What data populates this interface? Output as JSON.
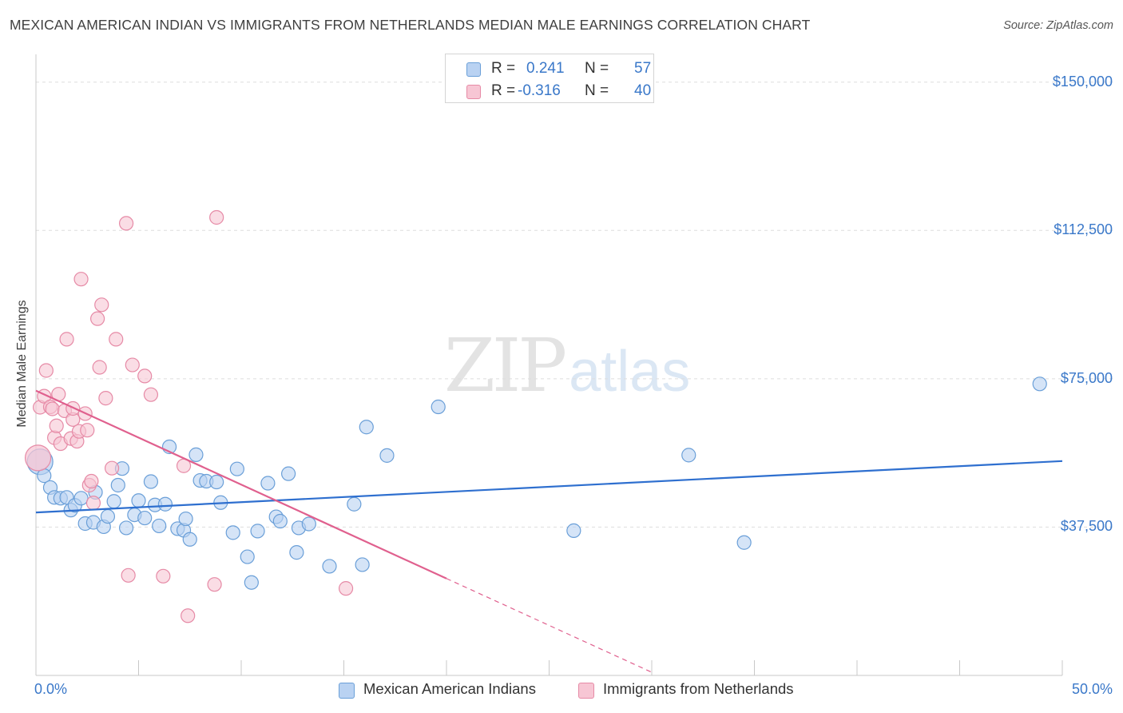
{
  "title": "MEXICAN AMERICAN INDIAN VS IMMIGRANTS FROM NETHERLANDS MEDIAN MALE EARNINGS CORRELATION CHART",
  "source": "Source: ZipAtlas.com",
  "watermark": {
    "zip": "ZIP",
    "atlas": "atlas"
  },
  "stats": [
    {
      "r_label": "R =",
      "r_value": "0.241",
      "n_label": "N =",
      "n_value": "57"
    },
    {
      "r_label": "R =",
      "r_value": "-0.316",
      "n_label": "N =",
      "n_value": "40"
    }
  ],
  "colors": {
    "blue_fill": "#b9d2f2",
    "blue_stroke": "#6a9fd8",
    "blue_line": "#2e6fcf",
    "pink_fill": "#f7c6d4",
    "pink_stroke": "#e68aa6",
    "pink_line": "#e0608e",
    "axis_text": "#3a78c9",
    "grid": "#dddddd"
  },
  "chart_data": {
    "type": "scatter",
    "title": "MEXICAN AMERICAN INDIAN VS IMMIGRANTS FROM NETHERLANDS MEDIAN MALE EARNINGS CORRELATION CHART",
    "xlabel": "",
    "ylabel": "Median Male Earnings",
    "xlim": [
      0,
      50
    ],
    "ylim": [
      0,
      155000
    ],
    "x_tick_labels": [
      "0.0%",
      "50.0%"
    ],
    "y_ticks": [
      {
        "value": 37500,
        "label": "$37,500"
      },
      {
        "value": 75000,
        "label": "$75,000"
      },
      {
        "value": 112500,
        "label": "$112,500"
      },
      {
        "value": 150000,
        "label": "$150,000"
      }
    ],
    "grid": true,
    "legend_position": "bottom-center",
    "series": [
      {
        "name": "Mexican American Indians",
        "color": "blue",
        "trend": {
          "x0": 0,
          "y0": 41200,
          "x1": 50,
          "y1": 54200
        },
        "points": [
          {
            "x": 0.2,
            "y": 54000,
            "big": true
          },
          {
            "x": 0.4,
            "y": 50500
          },
          {
            "x": 0.7,
            "y": 47500
          },
          {
            "x": 0.9,
            "y": 45000
          },
          {
            "x": 1.2,
            "y": 44800
          },
          {
            "x": 1.5,
            "y": 45000
          },
          {
            "x": 1.7,
            "y": 41800
          },
          {
            "x": 1.9,
            "y": 43000
          },
          {
            "x": 2.2,
            "y": 44800
          },
          {
            "x": 2.4,
            "y": 38400
          },
          {
            "x": 2.8,
            "y": 38700
          },
          {
            "x": 2.9,
            "y": 46300
          },
          {
            "x": 3.3,
            "y": 37600
          },
          {
            "x": 3.5,
            "y": 40200
          },
          {
            "x": 3.8,
            "y": 44000
          },
          {
            "x": 4.0,
            "y": 48100
          },
          {
            "x": 4.2,
            "y": 52300
          },
          {
            "x": 4.4,
            "y": 37300
          },
          {
            "x": 4.8,
            "y": 40600
          },
          {
            "x": 5.0,
            "y": 44200
          },
          {
            "x": 5.3,
            "y": 39800
          },
          {
            "x": 5.6,
            "y": 49000
          },
          {
            "x": 5.8,
            "y": 43100
          },
          {
            "x": 6.0,
            "y": 37800
          },
          {
            "x": 6.3,
            "y": 43300
          },
          {
            "x": 6.5,
            "y": 57800
          },
          {
            "x": 6.9,
            "y": 37100
          },
          {
            "x": 7.2,
            "y": 36700
          },
          {
            "x": 7.3,
            "y": 39600
          },
          {
            "x": 7.5,
            "y": 34400
          },
          {
            "x": 7.8,
            "y": 55800
          },
          {
            "x": 8.0,
            "y": 49300
          },
          {
            "x": 8.3,
            "y": 49100
          },
          {
            "x": 8.8,
            "y": 48900
          },
          {
            "x": 9.0,
            "y": 43700
          },
          {
            "x": 9.6,
            "y": 36100
          },
          {
            "x": 9.8,
            "y": 52200
          },
          {
            "x": 10.3,
            "y": 30000
          },
          {
            "x": 10.5,
            "y": 23500
          },
          {
            "x": 10.8,
            "y": 36500
          },
          {
            "x": 11.3,
            "y": 48600
          },
          {
            "x": 11.7,
            "y": 40100
          },
          {
            "x": 11.9,
            "y": 39000
          },
          {
            "x": 12.3,
            "y": 51000
          },
          {
            "x": 12.7,
            "y": 31100
          },
          {
            "x": 12.8,
            "y": 37300
          },
          {
            "x": 13.3,
            "y": 38300
          },
          {
            "x": 14.3,
            "y": 27600
          },
          {
            "x": 15.5,
            "y": 43300
          },
          {
            "x": 15.9,
            "y": 28000
          },
          {
            "x": 16.1,
            "y": 62800
          },
          {
            "x": 17.1,
            "y": 55600
          },
          {
            "x": 19.6,
            "y": 67900
          },
          {
            "x": 26.2,
            "y": 36600
          },
          {
            "x": 31.8,
            "y": 55700
          },
          {
            "x": 34.5,
            "y": 33600
          },
          {
            "x": 48.9,
            "y": 73700
          }
        ]
      },
      {
        "name": "Immigrants from Netherlands",
        "color": "pink",
        "trend": {
          "x0": 0,
          "y0": 72000,
          "x1": 20,
          "y1": 24500,
          "dash_to_x": 30,
          "dash_to_y": 800
        },
        "points": [
          {
            "x": 0.1,
            "y": 55000,
            "big": true
          },
          {
            "x": 0.2,
            "y": 67800
          },
          {
            "x": 0.4,
            "y": 70600
          },
          {
            "x": 0.5,
            "y": 77100
          },
          {
            "x": 0.7,
            "y": 67900
          },
          {
            "x": 0.8,
            "y": 67400
          },
          {
            "x": 0.9,
            "y": 60100
          },
          {
            "x": 1.0,
            "y": 63100
          },
          {
            "x": 1.1,
            "y": 71100
          },
          {
            "x": 1.2,
            "y": 58600
          },
          {
            "x": 1.4,
            "y": 66900
          },
          {
            "x": 1.5,
            "y": 85000
          },
          {
            "x": 1.7,
            "y": 59900
          },
          {
            "x": 1.8,
            "y": 64700
          },
          {
            "x": 1.8,
            "y": 67500
          },
          {
            "x": 2.0,
            "y": 59200
          },
          {
            "x": 2.1,
            "y": 61700
          },
          {
            "x": 2.2,
            "y": 100200
          },
          {
            "x": 2.4,
            "y": 66200
          },
          {
            "x": 2.5,
            "y": 62000
          },
          {
            "x": 2.6,
            "y": 48100
          },
          {
            "x": 2.7,
            "y": 49100
          },
          {
            "x": 2.8,
            "y": 43600
          },
          {
            "x": 3.0,
            "y": 90200
          },
          {
            "x": 3.1,
            "y": 77900
          },
          {
            "x": 3.2,
            "y": 93700
          },
          {
            "x": 3.4,
            "y": 70100
          },
          {
            "x": 3.7,
            "y": 52400
          },
          {
            "x": 3.9,
            "y": 85000
          },
          {
            "x": 4.4,
            "y": 114300
          },
          {
            "x": 4.5,
            "y": 25300
          },
          {
            "x": 4.7,
            "y": 78500
          },
          {
            "x": 5.3,
            "y": 75700
          },
          {
            "x": 5.6,
            "y": 71000
          },
          {
            "x": 6.2,
            "y": 25100
          },
          {
            "x": 7.2,
            "y": 53000
          },
          {
            "x": 7.4,
            "y": 15100
          },
          {
            "x": 8.7,
            "y": 23000
          },
          {
            "x": 8.8,
            "y": 115800
          },
          {
            "x": 15.1,
            "y": 22000
          }
        ]
      }
    ]
  },
  "legend": [
    {
      "label": "Mexican American Indians",
      "color": "blue"
    },
    {
      "label": "Immigrants from Netherlands",
      "color": "pink"
    }
  ]
}
